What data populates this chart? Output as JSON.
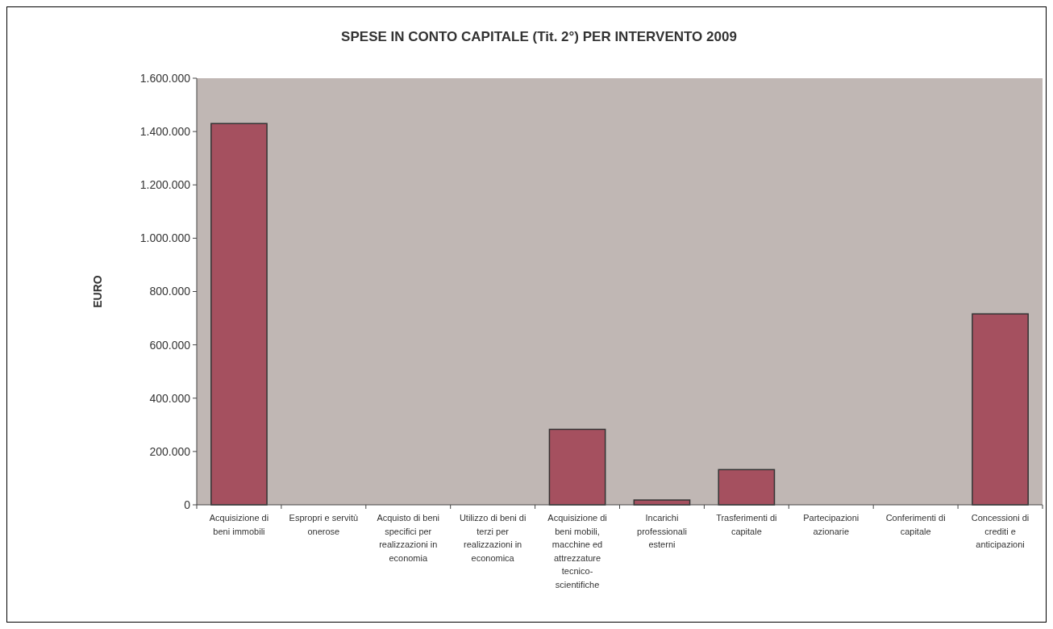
{
  "chart_data": {
    "type": "bar",
    "title": "SPESE IN CONTO CAPITALE (Tit. 2°)  PER INTERVENTO 2009",
    "ylabel": "EURO",
    "categories": [
      "Acquisizione di beni immobili",
      "Espropri e servitù onerose",
      "Acquisto di beni specifici per realizzazioni in economia",
      "Utilizzo di beni di terzi per realizzazioni in economica",
      "Acquisizione di beni mobili, macchine ed attrezzature tecnico-scientifiche",
      "Incarichi professionali esterni",
      "Trasferimenti di capitale",
      "Partecipazioni azionarie",
      "Conferimenti di capitale",
      "Concessioni di crediti e anticipazioni"
    ],
    "values": [
      1430000,
      0,
      0,
      0,
      283000,
      18000,
      132000,
      0,
      0,
      716000
    ],
    "color": "#a5505f",
    "ylim": [
      0,
      1600000
    ],
    "yticks": [
      {
        "value": 0,
        "label": "0"
      },
      {
        "value": 200000,
        "label": "200.000"
      },
      {
        "value": 400000,
        "label": "400.000"
      },
      {
        "value": 600000,
        "label": "600.000"
      },
      {
        "value": 800000,
        "label": "800.000"
      },
      {
        "value": 1000000,
        "label": "1.000.000"
      },
      {
        "value": 1200000,
        "label": "1.200.000"
      },
      {
        "value": 1400000,
        "label": "1.400.000"
      },
      {
        "value": 1600000,
        "label": "1.600.000"
      }
    ],
    "grid": false
  }
}
